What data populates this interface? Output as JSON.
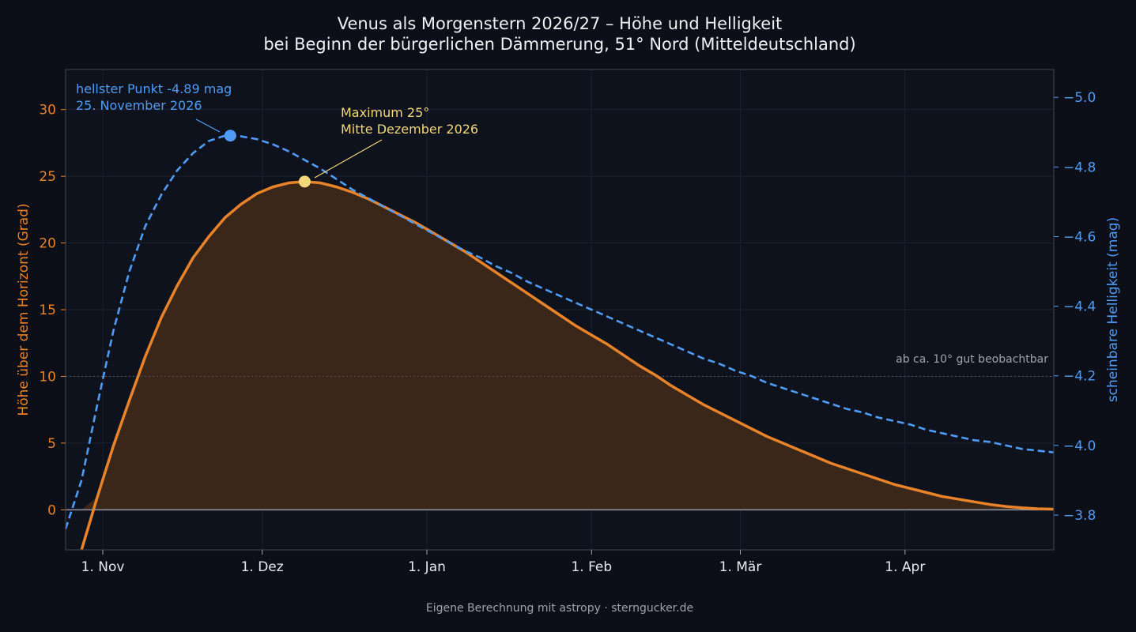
{
  "colors": {
    "background": "#0c0f17",
    "altitude": "#e8832a",
    "altitude_fill": "#3a271a",
    "magnitude": "#4f9cf7",
    "maximum_marker": "#f3d77a",
    "text": "#eef0f4",
    "muted": "#9ea3ad"
  },
  "footer": "Eigene Berechnung mit astropy · sterngucker.de",
  "chart_data": {
    "type": "line",
    "title": "Venus als Morgenstern 2026/27 – Höhe und Helligkeit",
    "subtitle": "bei Beginn der bürgerlichen Dämmerung, 51° Nord (Mitteldeutschland)",
    "ylabel_left": "Höhe über dem Horizont (Grad)",
    "ylabel_right": "scheinbare Helligkeit (mag)",
    "xlim": [
      "2026-10-25",
      "2027-04-29"
    ],
    "ylim_left": [
      -3,
      33
    ],
    "ylim_right": [
      -3.7,
      -5.08
    ],
    "right_axis_inverted": true,
    "x_ticks": [
      {
        "date": "2026-11-01",
        "label": "1. Nov"
      },
      {
        "date": "2026-12-01",
        "label": "1. Dez"
      },
      {
        "date": "2027-01-01",
        "label": "1. Jan"
      },
      {
        "date": "2027-02-01",
        "label": "1. Feb"
      },
      {
        "date": "2027-03-01",
        "label": "1. Mär"
      },
      {
        "date": "2027-04-01",
        "label": "1. Apr"
      }
    ],
    "y_ticks_left": [
      0,
      5,
      10,
      15,
      20,
      25,
      30
    ],
    "y_ticks_left_labels": [
      "0",
      "5",
      "10",
      "15",
      "20",
      "25",
      "30"
    ],
    "y_ticks_right": [
      -3.8,
      -4.0,
      -4.2,
      -4.4,
      -4.6,
      -4.8,
      -5.0
    ],
    "y_ticks_right_labels": [
      "−3.8",
      "−4.0",
      "−4.2",
      "−4.4",
      "−4.6",
      "−4.8",
      "−5.0"
    ],
    "grid": true,
    "threshold": {
      "value": 10,
      "label": "ab ca. 10° gut beobachtbar"
    },
    "series": [
      {
        "axis": "left",
        "style": "solid, filled",
        "x": [
          "2026-10-28",
          "2026-10-31",
          "2026-11-03",
          "2026-11-06",
          "2026-11-09",
          "2026-11-12",
          "2026-11-15",
          "2026-11-18",
          "2026-11-21",
          "2026-11-24",
          "2026-11-27",
          "2026-11-30",
          "2026-12-03",
          "2026-12-06",
          "2026-12-09",
          "2026-12-12",
          "2026-12-15",
          "2026-12-18",
          "2026-12-21",
          "2026-12-24",
          "2026-12-27",
          "2026-12-30",
          "2027-01-02",
          "2027-01-05",
          "2027-01-08",
          "2027-01-11",
          "2027-01-14",
          "2027-01-17",
          "2027-01-20",
          "2027-01-23",
          "2027-01-26",
          "2027-01-29",
          "2027-02-01",
          "2027-02-04",
          "2027-02-07",
          "2027-02-10",
          "2027-02-13",
          "2027-02-16",
          "2027-02-19",
          "2027-02-22",
          "2027-02-25",
          "2027-02-28",
          "2027-03-03",
          "2027-03-06",
          "2027-03-09",
          "2027-03-12",
          "2027-03-15",
          "2027-03-18",
          "2027-03-21",
          "2027-03-24",
          "2027-03-27",
          "2027-03-30",
          "2027-04-02",
          "2027-04-05",
          "2027-04-08",
          "2027-04-11",
          "2027-04-14",
          "2027-04-17",
          "2027-04-20",
          "2027-04-23",
          "2027-04-26",
          "2027-04-29"
        ],
        "values": [
          -3.0,
          1.0,
          4.8,
          8.2,
          11.5,
          14.4,
          16.8,
          18.9,
          20.5,
          21.9,
          22.9,
          23.7,
          24.2,
          24.5,
          24.6,
          24.5,
          24.2,
          23.8,
          23.3,
          22.7,
          22.1,
          21.5,
          20.8,
          20.1,
          19.4,
          18.6,
          17.8,
          17.0,
          16.2,
          15.4,
          14.6,
          13.8,
          13.1,
          12.4,
          11.6,
          10.8,
          10.1,
          9.3,
          8.6,
          7.9,
          7.3,
          6.7,
          6.1,
          5.5,
          5.0,
          4.5,
          4.0,
          3.5,
          3.1,
          2.7,
          2.3,
          1.9,
          1.6,
          1.3,
          1.0,
          0.8,
          0.6,
          0.4,
          0.25,
          0.15,
          0.08,
          0.05
        ]
      },
      {
        "axis": "right",
        "style": "dashed",
        "x": [
          "2026-10-25",
          "2026-10-28",
          "2026-10-31",
          "2026-11-03",
          "2026-11-06",
          "2026-11-09",
          "2026-11-12",
          "2026-11-15",
          "2026-11-18",
          "2026-11-21",
          "2026-11-24",
          "2026-11-27",
          "2026-11-30",
          "2026-12-03",
          "2026-12-06",
          "2026-12-09",
          "2026-12-12",
          "2026-12-15",
          "2026-12-18",
          "2026-12-21",
          "2026-12-24",
          "2026-12-27",
          "2026-12-30",
          "2027-01-02",
          "2027-01-05",
          "2027-01-08",
          "2027-01-11",
          "2027-01-14",
          "2027-01-17",
          "2027-01-20",
          "2027-01-23",
          "2027-01-26",
          "2027-01-29",
          "2027-02-01",
          "2027-02-04",
          "2027-02-07",
          "2027-02-10",
          "2027-02-13",
          "2027-02-16",
          "2027-02-19",
          "2027-02-22",
          "2027-02-25",
          "2027-02-28",
          "2027-03-03",
          "2027-03-06",
          "2027-03-09",
          "2027-03-12",
          "2027-03-15",
          "2027-03-18",
          "2027-03-21",
          "2027-03-24",
          "2027-03-27",
          "2027-03-30",
          "2027-04-02",
          "2027-04-05",
          "2027-04-08",
          "2027-04-11",
          "2027-04-14",
          "2027-04-17",
          "2027-04-20",
          "2027-04-23",
          "2027-04-26",
          "2027-04-29"
        ],
        "values": [
          -3.76,
          -3.9,
          -4.12,
          -4.33,
          -4.5,
          -4.63,
          -4.72,
          -4.79,
          -4.84,
          -4.875,
          -4.89,
          -4.888,
          -4.88,
          -4.865,
          -4.845,
          -4.82,
          -4.795,
          -4.765,
          -4.735,
          -4.71,
          -4.685,
          -4.66,
          -4.635,
          -4.61,
          -4.585,
          -4.56,
          -4.54,
          -4.515,
          -4.495,
          -4.47,
          -4.45,
          -4.43,
          -4.41,
          -4.39,
          -4.37,
          -4.35,
          -4.33,
          -4.31,
          -4.29,
          -4.27,
          -4.25,
          -4.235,
          -4.215,
          -4.2,
          -4.18,
          -4.165,
          -4.15,
          -4.135,
          -4.12,
          -4.105,
          -4.095,
          -4.08,
          -4.07,
          -4.06,
          -4.045,
          -4.035,
          -4.025,
          -4.015,
          -4.01,
          -4.0,
          -3.99,
          -3.985,
          -3.98
        ]
      }
    ],
    "annotations": [
      {
        "series": 1,
        "date": "2026-11-25",
        "value": -4.89,
        "lines": [
          "hellster Punkt -4.89 mag",
          "25. November 2026"
        ]
      },
      {
        "series": 0,
        "date": "2026-12-09",
        "value": 24.6,
        "lines": [
          "Maximum 25°",
          "Mitte Dezember 2026"
        ]
      }
    ]
  }
}
